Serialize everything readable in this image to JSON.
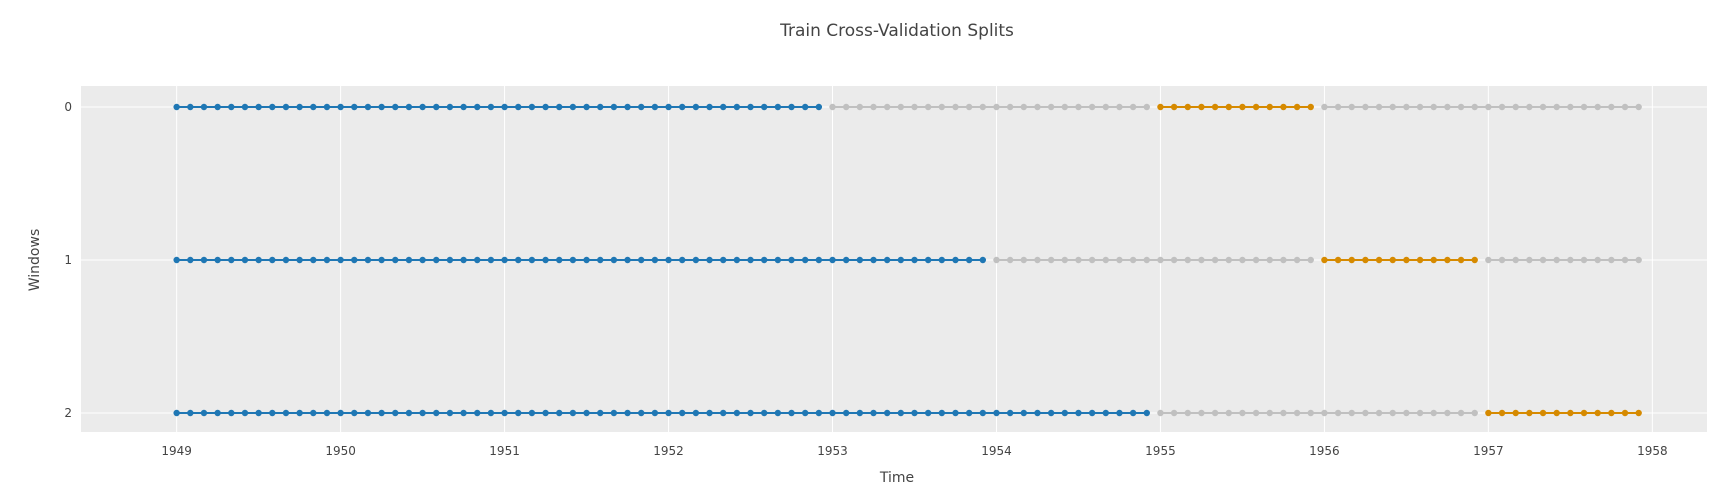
{
  "chart_data": {
    "type": "scatter",
    "title": "Train Cross-Validation Splits",
    "xlabel": "Time",
    "ylabel": "Windows",
    "x_ticks": [
      "1949",
      "1950",
      "1951",
      "1952",
      "1953",
      "1954",
      "1955",
      "1956",
      "1957",
      "1958"
    ],
    "y_ticks": [
      "0",
      "1",
      "2"
    ],
    "xlim": [
      "1948-06",
      "1958-05"
    ],
    "grid": true,
    "mode": "lines+markers",
    "point_frequency": "monthly",
    "colors": {
      "train": "#1f77b4",
      "validation": "#d68a00",
      "unused": "#c0c0c0",
      "plot_bg": "#ebebeb",
      "grid": "#ffffff"
    },
    "series": [
      {
        "window": 0,
        "segments": [
          {
            "role": "train",
            "start": "1949-01",
            "end": "1952-12"
          },
          {
            "role": "unused",
            "start": "1953-01",
            "end": "1954-12"
          },
          {
            "role": "validation",
            "start": "1955-01",
            "end": "1955-12"
          },
          {
            "role": "unused",
            "start": "1956-01",
            "end": "1957-12"
          }
        ]
      },
      {
        "window": 1,
        "segments": [
          {
            "role": "train",
            "start": "1949-01",
            "end": "1953-12"
          },
          {
            "role": "unused",
            "start": "1954-01",
            "end": "1955-12"
          },
          {
            "role": "validation",
            "start": "1956-01",
            "end": "1956-12"
          },
          {
            "role": "unused",
            "start": "1957-01",
            "end": "1957-12"
          }
        ]
      },
      {
        "window": 2,
        "segments": [
          {
            "role": "train",
            "start": "1949-01",
            "end": "1954-12"
          },
          {
            "role": "unused",
            "start": "1955-01",
            "end": "1956-12"
          },
          {
            "role": "validation",
            "start": "1957-01",
            "end": "1957-12"
          }
        ]
      }
    ]
  }
}
